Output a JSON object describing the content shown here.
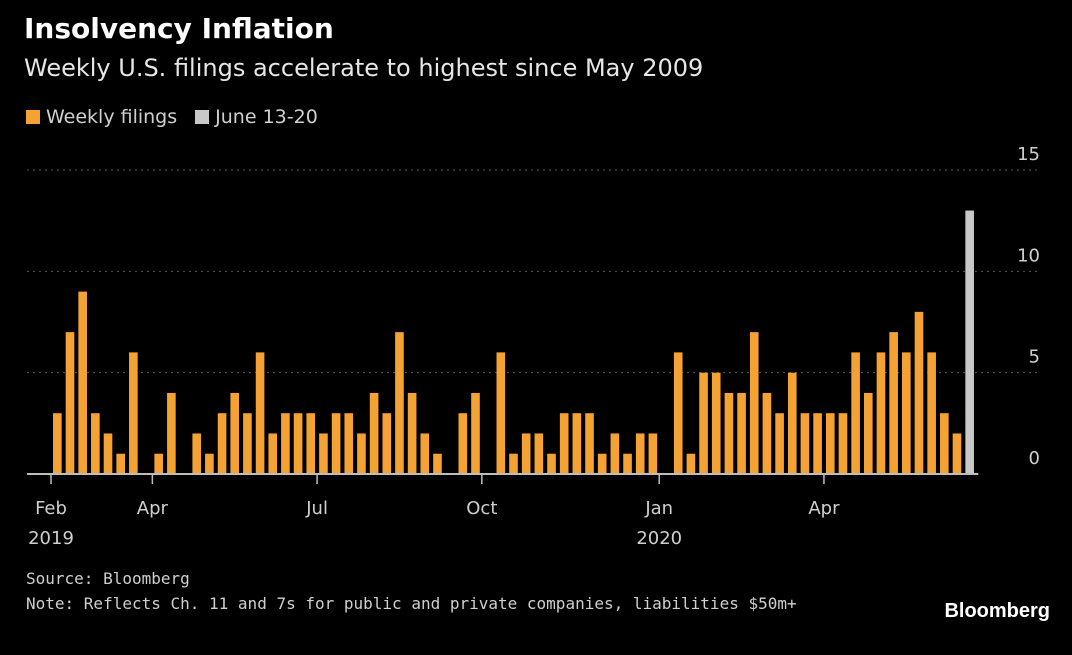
{
  "title": "Insolvency Inflation",
  "subtitle": "Weekly U.S. filings accelerate to highest since May 2009",
  "legend": [
    {
      "label": "Weekly filings",
      "color": "#f5a235"
    },
    {
      "label": "June 13-20",
      "color": "#c8c8c8"
    }
  ],
  "source": "Source: Bloomberg",
  "note": "Note: Reflects Ch. 11 and 7s for public and private companies, liabilities $50m+",
  "brand": "Bloomberg",
  "chart_data": {
    "type": "bar",
    "title": "Insolvency Inflation",
    "subtitle": "Weekly U.S. filings accelerate to highest since May 2009",
    "xlabel": "",
    "ylabel": "",
    "ylim": [
      0,
      15
    ],
    "yticks": [
      0,
      5,
      10,
      15
    ],
    "grid": true,
    "legend_position": "top-left",
    "series": [
      {
        "name": "Weekly filings",
        "color": "#f5a235",
        "values": [
          3,
          7,
          9,
          3,
          2,
          1,
          6,
          0,
          1,
          4,
          0,
          2,
          1,
          3,
          4,
          3,
          6,
          2,
          3,
          3,
          3,
          2,
          3,
          3,
          2,
          4,
          3,
          7,
          4,
          2,
          1,
          0,
          3,
          4,
          0,
          6,
          1,
          2,
          2,
          1,
          3,
          3,
          3,
          1,
          2,
          1,
          2,
          2,
          0,
          6,
          1,
          5,
          5,
          4,
          4,
          7,
          4,
          3,
          5,
          3,
          3,
          3,
          3,
          6,
          4,
          6,
          7,
          6,
          8,
          6,
          3,
          2
        ]
      },
      {
        "name": "June 13-20",
        "color": "#c8c8c8",
        "values": [
          13
        ]
      }
    ],
    "x_tick_labels": [
      {
        "label": "Feb",
        "year": "2019",
        "index": 0
      },
      {
        "label": "Apr",
        "year": "",
        "index": 8
      },
      {
        "label": "Jul",
        "year": "",
        "index": 21
      },
      {
        "label": "Oct",
        "year": "",
        "index": 34
      },
      {
        "label": "Jan",
        "year": "2020",
        "index": 48
      },
      {
        "label": "Apr",
        "year": "",
        "index": 61
      }
    ]
  }
}
